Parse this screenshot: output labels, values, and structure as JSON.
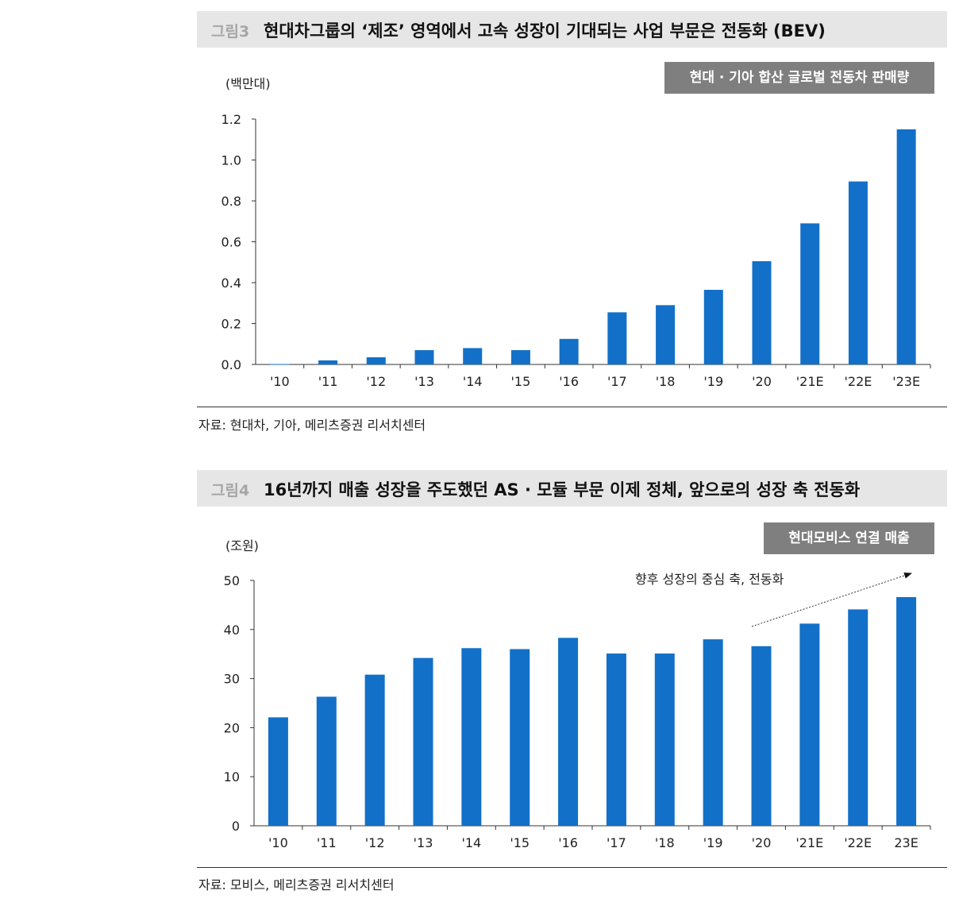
{
  "figure3": {
    "fig_num": "그림3",
    "title": "현대차그룹의 ‘제조’ 영역에서 고속 성장이 기대되는 사업 부문은 전동화 (BEV)",
    "legend_label": "현대 · 기아 합산 글로벌 전동차 판매량",
    "unit": "(백만대)",
    "source": "자료: 현대차, 기아, 메리츠증권 리서치센터"
  },
  "figure4": {
    "fig_num": "그림4",
    "title": "16년까지 매출 성장을 주도했던 AS · 모듈 부문 이제 정체, 앞으로의 성장 축 전동화",
    "legend_label": "현대모비스 연결 매출",
    "unit": "(조원)",
    "annotation": "향후 성장의 중심 축, 전동화",
    "source": "자료: 모비스, 메리츠증권 리서치센터"
  },
  "colors": {
    "bar": "#1270c8",
    "legend_bg": "#7f7f7f",
    "title_bg": "#e6e6e6"
  },
  "chart_data": [
    {
      "type": "bar",
      "title": "현대차그룹의 ‘제조’ 영역에서 고속 성장이 기대되는 사업 부문은 전동화 (BEV)",
      "series_name": "현대 · 기아 합산 글로벌 전동차 판매량",
      "categories": [
        "'10",
        "'11",
        "'12",
        "'13",
        "'14",
        "'15",
        "'16",
        "'17",
        "'18",
        "'19",
        "'20",
        "'21E",
        "'22E",
        "'23E"
      ],
      "values": [
        0.002,
        0.02,
        0.035,
        0.07,
        0.08,
        0.07,
        0.125,
        0.255,
        0.29,
        0.365,
        0.505,
        0.69,
        0.895,
        1.15
      ],
      "ylabel": "(백만대)",
      "ylim": [
        0,
        1.2
      ],
      "yticks": [
        "0.0",
        "0.2",
        "0.4",
        "0.6",
        "0.8",
        "1.0",
        "1.2"
      ],
      "grid": false,
      "legend_position": "top-right"
    },
    {
      "type": "bar",
      "title": "16년까지 매출 성장을 주도했던 AS · 모듈 부문 이제 정체, 앞으로의 성장 축 전동화",
      "series_name": "현대모비스 연결 매출",
      "categories": [
        "'10",
        "'11",
        "'12",
        "'13",
        "'14",
        "'15",
        "'16",
        "'17",
        "'18",
        "'19",
        "'20",
        "'21E",
        "'22E",
        "23E"
      ],
      "values": [
        22.1,
        26.3,
        30.8,
        34.2,
        36.2,
        36.0,
        38.3,
        35.1,
        35.1,
        38.0,
        36.6,
        41.2,
        44.1,
        46.6
      ],
      "ylabel": "(조원)",
      "ylim": [
        0,
        50
      ],
      "yticks": [
        "0",
        "10",
        "20",
        "30",
        "40",
        "50"
      ],
      "grid": false,
      "legend_position": "top-right",
      "annotation": "향후 성장의 중심 축, 전동화"
    }
  ]
}
